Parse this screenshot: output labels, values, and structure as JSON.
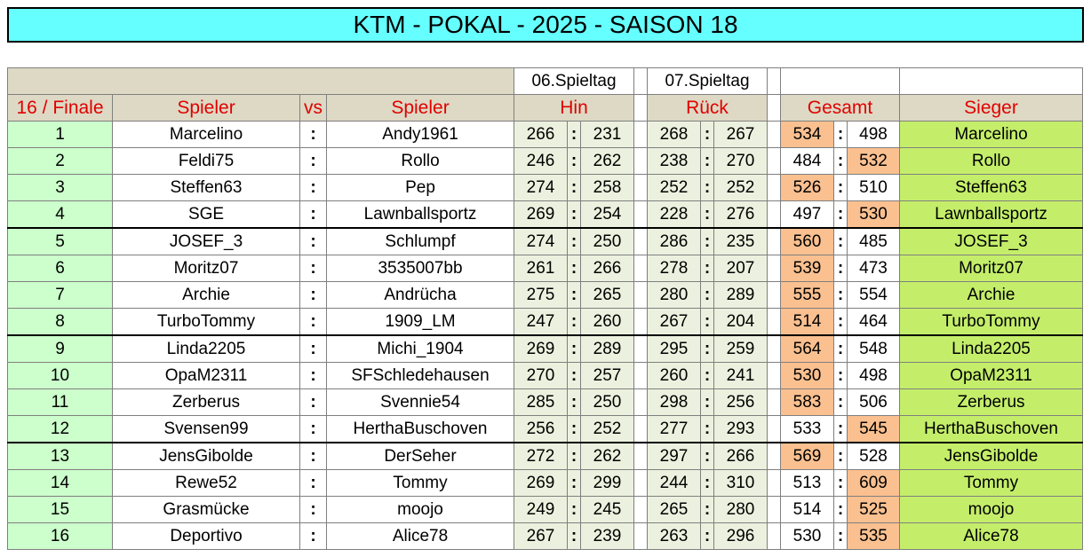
{
  "title": "KTM - POKAL - 2025 - SAISON 18",
  "header": {
    "day1": "06.Spieltag",
    "day2": "07.Spieltag",
    "round": "16 / Finale",
    "player1": "Spieler",
    "vs": "vs",
    "player2": "Spieler",
    "hin": "Hin",
    "rueck": "Rück",
    "gesamt": "Gesamt",
    "sieger": "Sieger"
  },
  "separator": ":",
  "rows": [
    {
      "nr": "1",
      "p1": "Marcelino",
      "p2": "Andy1961",
      "h1": "266",
      "h2": "231",
      "r1": "268",
      "r2": "267",
      "g1": "534",
      "g2": "498",
      "win": "Marcelino",
      "w": 1
    },
    {
      "nr": "2",
      "p1": "Feldi75",
      "p2": "Rollo",
      "h1": "246",
      "h2": "262",
      "r1": "238",
      "r2": "270",
      "g1": "484",
      "g2": "532",
      "win": "Rollo",
      "w": 2
    },
    {
      "nr": "3",
      "p1": "Steffen63",
      "p2": "Pep",
      "h1": "274",
      "h2": "258",
      "r1": "252",
      "r2": "252",
      "g1": "526",
      "g2": "510",
      "win": "Steffen63",
      "w": 1
    },
    {
      "nr": "4",
      "p1": "SGE",
      "p2": "Lawnballsportz",
      "h1": "269",
      "h2": "254",
      "r1": "228",
      "r2": "276",
      "g1": "497",
      "g2": "530",
      "win": "Lawnballsportz",
      "w": 2
    },
    {
      "nr": "5",
      "p1": "JOSEF_3",
      "p2": "Schlumpf",
      "h1": "274",
      "h2": "250",
      "r1": "286",
      "r2": "235",
      "g1": "560",
      "g2": "485",
      "win": "JOSEF_3",
      "w": 1
    },
    {
      "nr": "6",
      "p1": "Moritz07",
      "p2": "3535007bb",
      "h1": "261",
      "h2": "266",
      "r1": "278",
      "r2": "207",
      "g1": "539",
      "g2": "473",
      "win": "Moritz07",
      "w": 1
    },
    {
      "nr": "7",
      "p1": "Archie",
      "p2": "Andrücha",
      "h1": "275",
      "h2": "265",
      "r1": "280",
      "r2": "289",
      "g1": "555",
      "g2": "554",
      "win": "Archie",
      "w": 1
    },
    {
      "nr": "8",
      "p1": "TurboTommy",
      "p2": "1909_LM",
      "h1": "247",
      "h2": "260",
      "r1": "267",
      "r2": "204",
      "g1": "514",
      "g2": "464",
      "win": "TurboTommy",
      "w": 1
    },
    {
      "nr": "9",
      "p1": "Linda2205",
      "p2": "Michi_1904",
      "h1": "269",
      "h2": "289",
      "r1": "295",
      "r2": "259",
      "g1": "564",
      "g2": "548",
      "win": "Linda2205",
      "w": 1
    },
    {
      "nr": "10",
      "p1": "OpaM2311",
      "p2": "SFSchledehausen",
      "h1": "270",
      "h2": "257",
      "r1": "260",
      "r2": "241",
      "g1": "530",
      "g2": "498",
      "win": "OpaM2311",
      "w": 1
    },
    {
      "nr": "11",
      "p1": "Zerberus",
      "p2": "Svennie54",
      "h1": "285",
      "h2": "250",
      "r1": "298",
      "r2": "256",
      "g1": "583",
      "g2": "506",
      "win": "Zerberus",
      "w": 1
    },
    {
      "nr": "12",
      "p1": "Svensen99",
      "p2": "HerthaBuschoven",
      "h1": "256",
      "h2": "252",
      "r1": "277",
      "r2": "293",
      "g1": "533",
      "g2": "545",
      "win": "HerthaBuschoven",
      "w": 2
    },
    {
      "nr": "13",
      "p1": "JensGibolde",
      "p2": "DerSeher",
      "h1": "272",
      "h2": "262",
      "r1": "297",
      "r2": "266",
      "g1": "569",
      "g2": "528",
      "win": "JensGibolde",
      "w": 1
    },
    {
      "nr": "14",
      "p1": "Rewe52",
      "p2": "Tommy",
      "h1": "269",
      "h2": "299",
      "r1": "244",
      "r2": "310",
      "g1": "513",
      "g2": "609",
      "win": "Tommy",
      "w": 2
    },
    {
      "nr": "15",
      "p1": "Grasmücke",
      "p2": "moojo",
      "h1": "249",
      "h2": "245",
      "r1": "265",
      "r2": "280",
      "g1": "514",
      "g2": "525",
      "win": "moojo",
      "w": 2
    },
    {
      "nr": "16",
      "p1": "Deportivo",
      "p2": "Alice78",
      "h1": "267",
      "h2": "239",
      "r1": "263",
      "r2": "296",
      "g1": "530",
      "g2": "535",
      "win": "Alice78",
      "w": 2
    }
  ],
  "colors": {
    "title_bg": "#66ffff",
    "header_text": "#e00000",
    "winner_bg": "#c4ee6a",
    "winner_score_bg": "#fac090",
    "round_bg": "#ccffcc",
    "score_bg": "#ebf1de"
  }
}
